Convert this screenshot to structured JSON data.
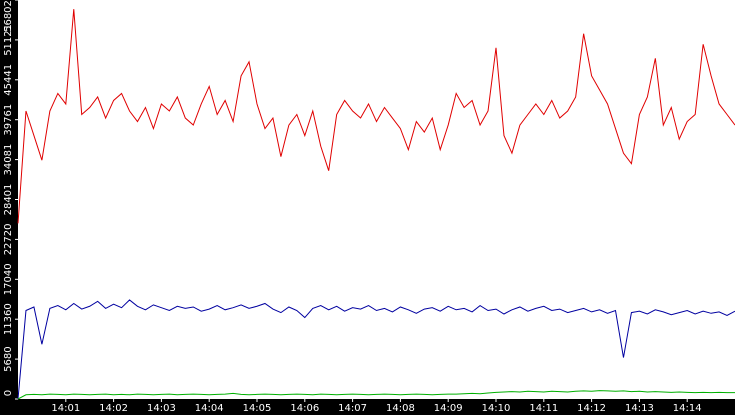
{
  "chart_data": {
    "type": "line",
    "x": [
      "14:00:00",
      "14:00:10",
      "14:00:20",
      "14:00:30",
      "14:00:40",
      "14:00:50",
      "14:01:00",
      "14:01:10",
      "14:01:20",
      "14:01:30",
      "14:01:40",
      "14:01:50",
      "14:02:00",
      "14:02:10",
      "14:02:20",
      "14:02:30",
      "14:02:40",
      "14:02:50",
      "14:03:00",
      "14:03:10",
      "14:03:20",
      "14:03:30",
      "14:03:40",
      "14:03:50",
      "14:04:00",
      "14:04:10",
      "14:04:20",
      "14:04:30",
      "14:04:40",
      "14:04:50",
      "14:05:00",
      "14:05:10",
      "14:05:20",
      "14:05:30",
      "14:05:40",
      "14:05:50",
      "14:06:00",
      "14:06:10",
      "14:06:20",
      "14:06:30",
      "14:06:40",
      "14:06:50",
      "14:07:00",
      "14:07:10",
      "14:07:20",
      "14:07:30",
      "14:07:40",
      "14:07:50",
      "14:08:00",
      "14:08:10",
      "14:08:20",
      "14:08:30",
      "14:08:40",
      "14:08:50",
      "14:09:00",
      "14:09:10",
      "14:09:20",
      "14:09:30",
      "14:09:40",
      "14:09:50",
      "14:10:00",
      "14:10:10",
      "14:10:20",
      "14:10:30",
      "14:10:40",
      "14:10:50",
      "14:11:00",
      "14:11:10",
      "14:11:20",
      "14:11:30",
      "14:11:40",
      "14:11:50",
      "14:12:00",
      "14:12:10",
      "14:12:20",
      "14:12:30",
      "14:12:40",
      "14:12:50",
      "14:13:00",
      "14:13:10",
      "14:13:20",
      "14:13:30",
      "14:13:40",
      "14:13:50",
      "14:14:00",
      "14:14:10",
      "14:14:20",
      "14:14:30",
      "14:14:40",
      "14:14:50",
      "14:15:00"
    ],
    "series": [
      {
        "color": "#e00000",
        "values": [
          25000,
          41000,
          37500,
          34000,
          41000,
          43500,
          42000,
          55500,
          40500,
          41500,
          43000,
          40000,
          42500,
          43500,
          41000,
          39500,
          41500,
          38500,
          42000,
          41000,
          43000,
          40000,
          39000,
          42000,
          44500,
          40500,
          42500,
          39500,
          46000,
          48000,
          42000,
          38500,
          40000,
          34500,
          39000,
          40500,
          37500,
          41000,
          36000,
          32500,
          40500,
          42500,
          41000,
          40000,
          42000,
          39500,
          41500,
          40000,
          38500,
          35500,
          39500,
          38000,
          40000,
          35500,
          39000,
          43500,
          41500,
          42500,
          39000,
          41000,
          50000,
          37500,
          35000,
          39000,
          40500,
          42000,
          40500,
          42500,
          40000,
          41000,
          43000,
          52000,
          46000,
          44000,
          42000,
          38500,
          35000,
          33500,
          40500,
          43000,
          48500,
          39000,
          41500,
          37000,
          39500,
          40500,
          50500,
          46000,
          42000,
          40500,
          39000
        ]
      },
      {
        "color": "#0000a0",
        "values": [
          0,
          12600,
          13100,
          7800,
          12900,
          13300,
          12700,
          13600,
          12800,
          13200,
          13900,
          12900,
          13500,
          13000,
          14100,
          13200,
          12700,
          13400,
          13000,
          12600,
          13200,
          12900,
          13100,
          12500,
          12800,
          13300,
          12700,
          13000,
          13400,
          12900,
          13200,
          13600,
          12800,
          12300,
          13100,
          12600,
          11600,
          12900,
          13300,
          12700,
          13200,
          12500,
          13000,
          12800,
          13300,
          12600,
          12900,
          12400,
          13100,
          12700,
          12200,
          12800,
          13000,
          12500,
          13200,
          12700,
          12900,
          12400,
          13300,
          12600,
          12800,
          12100,
          12700,
          13100,
          12500,
          12900,
          13200,
          12600,
          12800,
          12300,
          12600,
          12900,
          12400,
          12700,
          12200,
          12600,
          5900,
          12300,
          12500,
          12100,
          12700,
          12400,
          12000,
          12300,
          12600,
          12100,
          12500,
          12200,
          12400,
          11900,
          12500
        ]
      },
      {
        "color": "#00b000",
        "values": [
          0,
          600,
          650,
          600,
          700,
          650,
          600,
          700,
          650,
          600,
          650,
          700,
          600,
          650,
          600,
          700,
          650,
          600,
          650,
          700,
          600,
          650,
          700,
          650,
          600,
          650,
          700,
          800,
          650,
          600,
          650,
          700,
          650,
          600,
          650,
          700,
          650,
          600,
          700,
          650,
          600,
          650,
          700,
          650,
          600,
          650,
          700,
          650,
          600,
          650,
          700,
          650,
          600,
          650,
          700,
          700,
          750,
          800,
          750,
          850,
          950,
          1000,
          1050,
          1000,
          1100,
          1050,
          1000,
          1100,
          1050,
          1000,
          1100,
          1150,
          1100,
          1200,
          1150,
          1100,
          1150,
          1050,
          1100,
          1000,
          1050,
          1000,
          950,
          1000,
          950,
          900,
          950,
          900,
          950,
          900,
          900
        ]
      }
    ],
    "xlim": [
      "14:00:00",
      "14:15:00"
    ],
    "xticks": [
      "14:01",
      "14:02",
      "14:03",
      "14:04",
      "14:05",
      "14:06",
      "14:07",
      "14:08",
      "14:09",
      "14:10",
      "14:11",
      "14:12",
      "14:13",
      "14:14"
    ],
    "ylim": [
      0,
      56802
    ],
    "yticks": [
      0,
      5680,
      11360,
      17040,
      22720,
      28401,
      34081,
      39761,
      45441,
      51121,
      56802
    ]
  }
}
